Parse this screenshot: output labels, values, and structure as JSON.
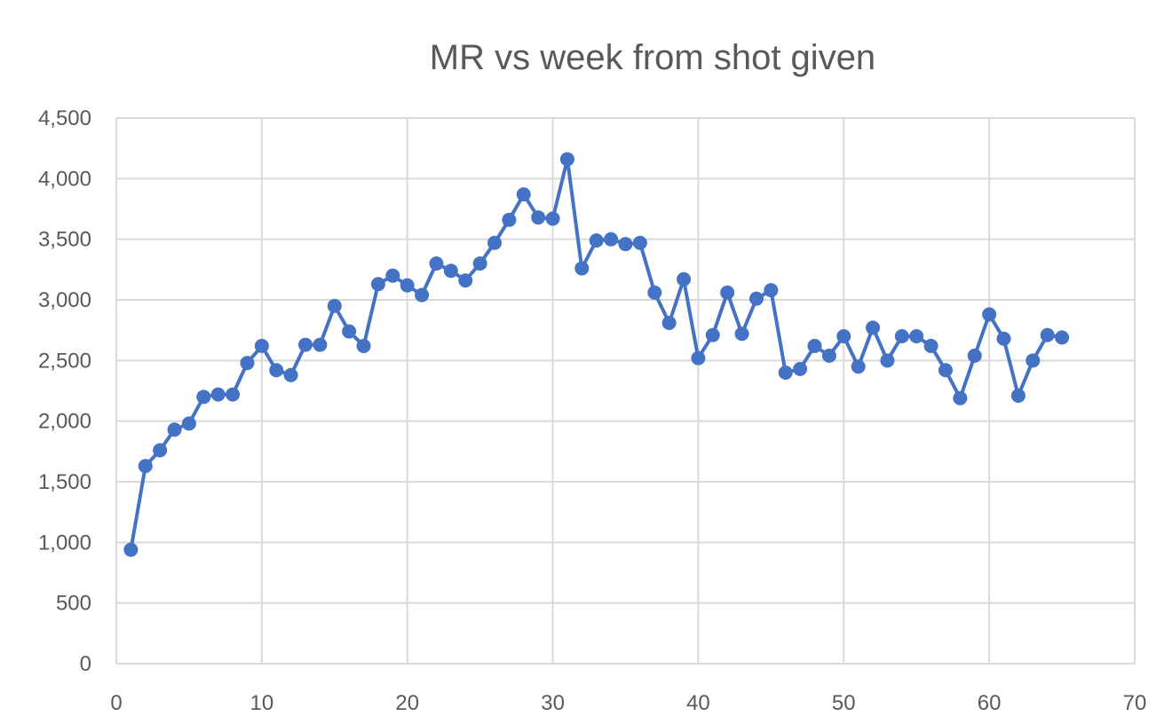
{
  "chart_data": {
    "type": "line",
    "title": "MR vs week from shot given",
    "xlabel": "",
    "ylabel": "",
    "xlim": [
      0,
      70
    ],
    "ylim": [
      0,
      4500
    ],
    "x_ticks": [
      0,
      10,
      20,
      30,
      40,
      50,
      60,
      70
    ],
    "y_ticks": [
      0,
      500,
      1000,
      1500,
      2000,
      2500,
      3000,
      3500,
      4000,
      4500
    ],
    "x_tick_labels": [
      "0",
      "10",
      "20",
      "30",
      "40",
      "50",
      "60",
      "70"
    ],
    "y_tick_labels": [
      "0",
      "500",
      "1,000",
      "1,500",
      "2,000",
      "2,500",
      "3,000",
      "3,500",
      "4,000",
      "4,500"
    ],
    "grid": true,
    "legend": "none",
    "series": [
      {
        "name": "",
        "color": "#4472c4",
        "x": [
          1,
          2,
          3,
          4,
          5,
          6,
          7,
          8,
          9,
          10,
          11,
          12,
          13,
          14,
          15,
          16,
          17,
          18,
          19,
          20,
          21,
          22,
          23,
          24,
          25,
          26,
          27,
          28,
          29,
          30,
          31,
          32,
          33,
          34,
          35,
          36,
          37,
          38,
          39,
          40,
          41,
          42,
          43,
          44,
          45,
          46,
          47,
          48,
          49,
          50,
          51,
          52,
          53,
          54,
          55,
          56,
          57,
          58,
          59,
          60,
          61,
          62,
          63,
          64,
          65
        ],
        "y": [
          940,
          1630,
          1760,
          1930,
          1980,
          2200,
          2220,
          2220,
          2480,
          2620,
          2420,
          2380,
          2630,
          2630,
          2950,
          2740,
          2620,
          3130,
          3200,
          3120,
          3040,
          3300,
          3240,
          3160,
          3300,
          3470,
          3660,
          3870,
          3680,
          3670,
          4160,
          3260,
          3490,
          3500,
          3460,
          3470,
          3060,
          2810,
          3170,
          2520,
          2710,
          3060,
          2720,
          3010,
          3080,
          2400,
          2430,
          2620,
          2540,
          2700,
          2450,
          2770,
          2500,
          2700,
          2700,
          2620,
          2420,
          2190,
          2540,
          2880,
          2680,
          2210,
          2500,
          2710,
          2690
        ]
      }
    ]
  }
}
